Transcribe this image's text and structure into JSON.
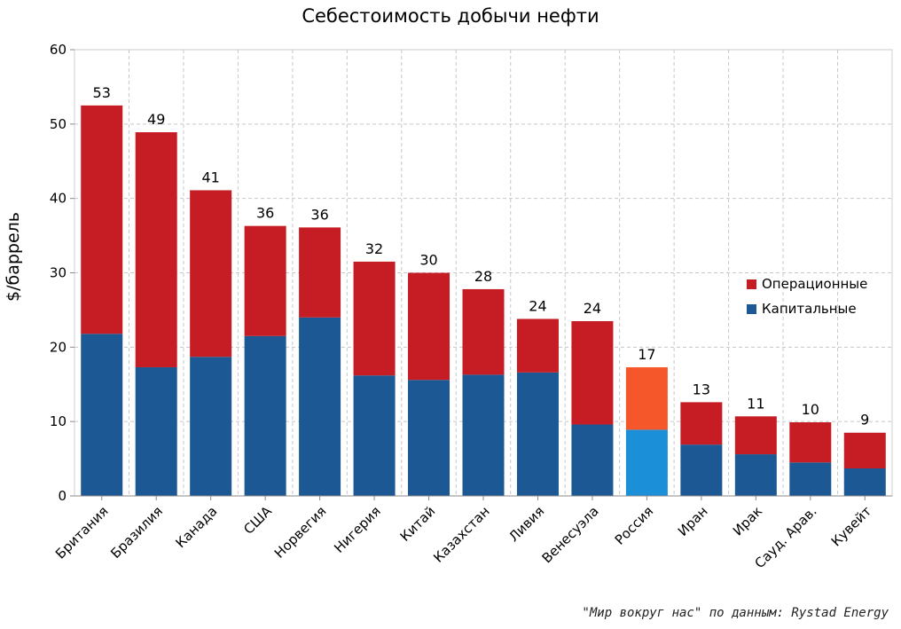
{
  "chart_data": {
    "type": "bar",
    "stacked": true,
    "title": "Себестоимость добычи нефти",
    "ylabel": "$/баррель",
    "xlabel": "",
    "ylim": [
      0,
      60
    ],
    "yticks": [
      0,
      10,
      20,
      30,
      40,
      50,
      60
    ],
    "grid": true,
    "legend_position": "right",
    "categories": [
      "Британия",
      "Бразилия",
      "Канада",
      "США",
      "Норвегия",
      "Нигерия",
      "Китай",
      "Казахстан",
      "Ливия",
      "Венесуэла",
      "Россия",
      "Иран",
      "Ирак",
      "Сауд. Арав.",
      "Кувейт"
    ],
    "series": [
      {
        "name": "Капитальные",
        "color": "#1c5894",
        "values": [
          21.8,
          17.3,
          18.7,
          21.5,
          24.0,
          16.2,
          15.6,
          16.3,
          16.6,
          9.6,
          8.9,
          6.9,
          5.6,
          4.5,
          3.7
        ]
      },
      {
        "name": "Операционные",
        "color": "#c61c24",
        "values": [
          30.7,
          31.6,
          22.4,
          14.8,
          12.1,
          15.3,
          14.4,
          11.5,
          7.2,
          13.9,
          8.4,
          5.7,
          5.1,
          5.4,
          4.8
        ]
      }
    ],
    "totals": [
      "53",
      "49",
      "41",
      "36",
      "36",
      "32",
      "30",
      "28",
      "24",
      "24",
      "17",
      "13",
      "11",
      "10",
      "9"
    ],
    "highlight": {
      "category": "Россия",
      "colors": {
        "Капитальные": "#1b8fd8",
        "Операционные": "#f5572a"
      }
    }
  },
  "source_note": "\"Мир вокруг нас\" по данным: Rystad Energy"
}
